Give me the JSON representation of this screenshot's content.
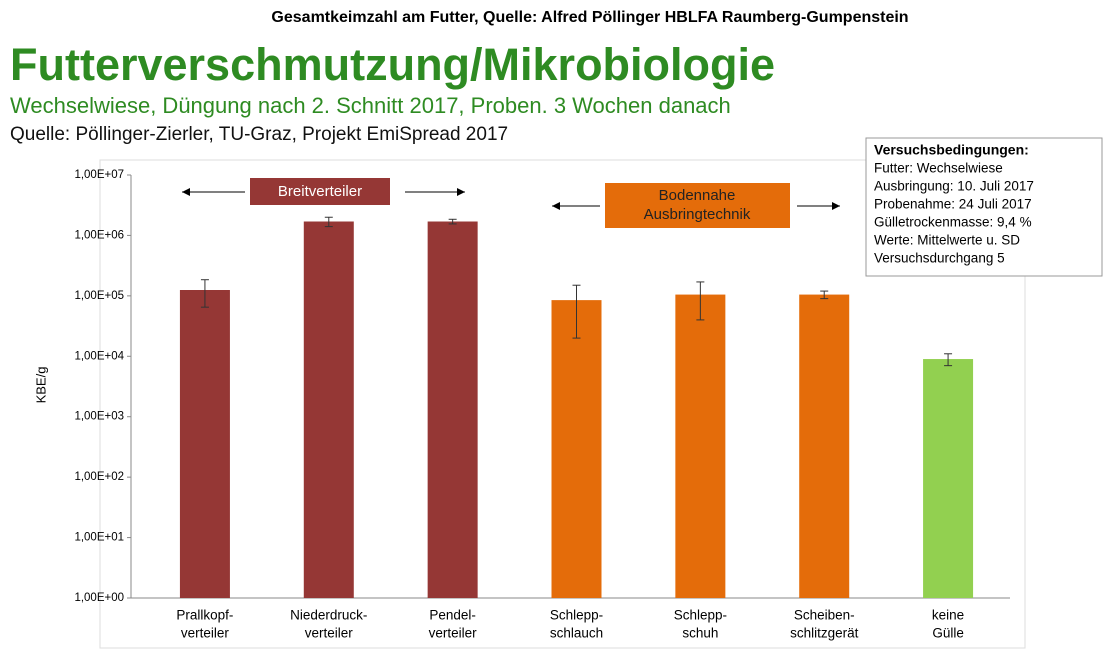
{
  "header": "Gesamtkeimzahl am Futter, Quelle: Alfred Pöllinger HBLFA Raumberg-Gumpenstein",
  "title": "Futterverschmutzung/Mikrobiologie",
  "subtitle": "Wechselwiese, Düngung nach 2. Schnitt 2017, Proben. 3 Wochen danach",
  "source": "Quelle: Pöllinger-Zierler, TU-Graz, Projekt EmiSpread 2017",
  "info": {
    "title": "Versuchsbedingungen:",
    "lines": [
      "Futter: Wechselwiese",
      "Ausbringung: 10. Juli 2017",
      "Probenahme: 24 Juli 2017",
      "Gülletrockenmasse: 9,4 %",
      "Werte: Mittelwerte u. SD",
      "Versuchsdurchgang 5"
    ]
  },
  "chart_data": {
    "type": "bar",
    "log_scale": true,
    "y_label": "KBE/g",
    "categories": [
      [
        "Prallkopf-",
        "verteiler"
      ],
      [
        "Niederdruck-",
        "verteiler"
      ],
      [
        "Pendel-",
        "verteiler"
      ],
      [
        "Schlepp-",
        "schlauch"
      ],
      [
        "Schlepp-",
        "schuh"
      ],
      [
        "Scheiben-",
        "schlitzgerät"
      ],
      [
        "keine",
        "Gülle"
      ]
    ],
    "values": [
      125000,
      1700000,
      1700000,
      85000,
      105000,
      105000,
      9000
    ],
    "errors": [
      60000,
      300000,
      150000,
      65000,
      65000,
      15000,
      2000
    ],
    "colors": [
      "#953735",
      "#953735",
      "#953735",
      "#e46c0a",
      "#e46c0a",
      "#e46c0a",
      "#92d050"
    ],
    "ylim": [
      1,
      10000000
    ],
    "yticks": [
      {
        "value": 1,
        "label": "1,00E+00"
      },
      {
        "value": 10,
        "label": "1,00E+01"
      },
      {
        "value": 100,
        "label": "1,00E+02"
      },
      {
        "value": 1000,
        "label": "1,00E+03"
      },
      {
        "value": 10000,
        "label": "1,00E+04"
      },
      {
        "value": 100000,
        "label": "1,00E+05"
      },
      {
        "value": 1000000,
        "label": "1,00E+06"
      },
      {
        "value": 10000000,
        "label": "1,00E+07"
      }
    ],
    "annotations": {
      "group1": [
        "Breitverteiler"
      ],
      "group2": [
        "Bodennahe",
        "Ausbringtechnik"
      ]
    }
  }
}
